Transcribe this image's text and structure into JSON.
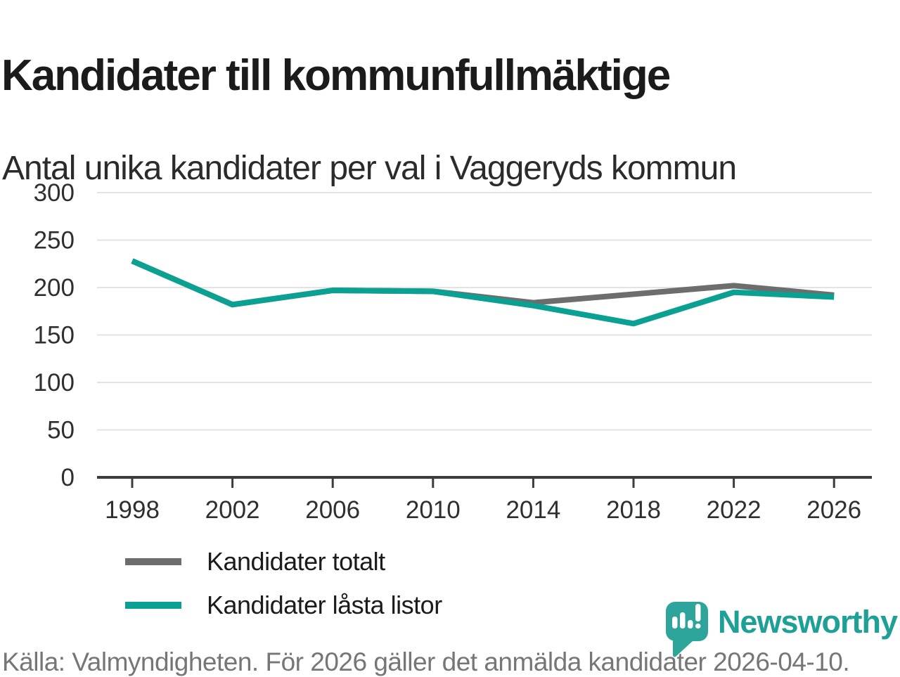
{
  "header": {
    "title": "Kandidater till kommunfullmäktige",
    "subtitle": "Antal unika kandidater per val i Vaggeryds kommun"
  },
  "chart_data": {
    "type": "line",
    "title": "Kandidater till kommunfullmäktige",
    "subtitle": "Antal unika kandidater per val i Vaggeryds kommun",
    "x": [
      1998,
      2002,
      2006,
      2010,
      2014,
      2018,
      2022,
      2026
    ],
    "series": [
      {
        "name": "Kandidater totalt",
        "color": "#6d6d6d",
        "values": [
          228,
          182,
          197,
          196,
          184,
          193,
          202,
          192
        ]
      },
      {
        "name": "Kandidater låsta listor",
        "color": "#0aa193",
        "values": [
          228,
          182,
          197,
          196,
          181,
          162,
          195,
          190
        ]
      }
    ],
    "xlabel": "",
    "ylabel": "",
    "ylim": [
      0,
      300
    ],
    "yticks": [
      0,
      50,
      100,
      150,
      200,
      250,
      300
    ],
    "grid": "horizontal-only",
    "legend_position": "inside-left"
  },
  "footer": {
    "source": "Källa: Valmyndigheten. För 2026 gäller det anmälda kandidater 2026-04-10.",
    "logo": {
      "wordmark": "Newsworthy",
      "icon": "newsworthy-speech-bubble-barchart-icon",
      "color": "#2ea59b",
      "wordmark_color": "#1fa096"
    }
  }
}
